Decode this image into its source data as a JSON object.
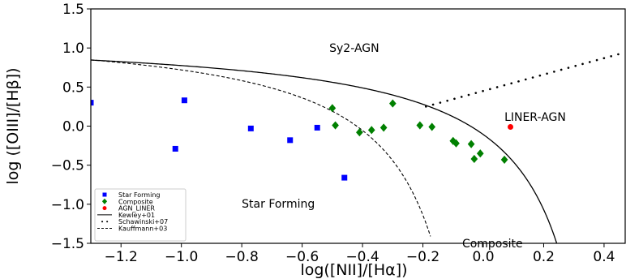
{
  "chart_data": {
    "type": "scatter",
    "xlabel": "log([NII]/[Hα])",
    "ylabel": "log ([OIII]/[Hβ])",
    "xlim": [
      -1.3,
      0.47
    ],
    "ylim": [
      -1.5,
      1.5
    ],
    "xticks": [
      -1.2,
      -1.0,
      -0.8,
      -0.6,
      -0.4,
      -0.2,
      0.0,
      0.2,
      0.4
    ],
    "xtick_labels": [
      "−1.2",
      "−1.0",
      "−0.8",
      "−0.6",
      "−0.4",
      "−0.2",
      "0.0",
      "0.2",
      "0.4"
    ],
    "yticks": [
      -1.5,
      -1.0,
      -0.5,
      0.0,
      0.5,
      1.0,
      1.5
    ],
    "ytick_labels": [
      "−1.5",
      "−1.0",
      "−0.5",
      "0.0",
      "0.5",
      "1.0",
      "1.5"
    ],
    "grid": false,
    "legend_placement": "lower-left",
    "region_labels": [
      {
        "text": "Sy2-AGN",
        "x": -0.51,
        "y": 1.0
      },
      {
        "text": "LINER-AGN",
        "x": 0.07,
        "y": 0.12
      },
      {
        "text": "Star Forming",
        "x": -0.8,
        "y": -0.99
      },
      {
        "text": "Composite",
        "x": -0.07,
        "y": -1.5
      }
    ],
    "series": [
      {
        "name": "Star Forming",
        "marker": "square",
        "color": "#0000ff",
        "points": [
          [
            -1.3,
            0.3
          ],
          [
            -0.99,
            0.33
          ],
          [
            -1.02,
            -0.29
          ],
          [
            -0.77,
            -0.03
          ],
          [
            -0.64,
            -0.18
          ],
          [
            -0.55,
            -0.02
          ],
          [
            -0.46,
            -0.66
          ]
        ]
      },
      {
        "name": "Composite",
        "marker": "diamond",
        "color": "#008000",
        "points": [
          [
            -0.5,
            0.23
          ],
          [
            -0.49,
            0.01
          ],
          [
            -0.41,
            -0.08
          ],
          [
            -0.37,
            -0.05
          ],
          [
            -0.33,
            -0.02
          ],
          [
            -0.3,
            0.29
          ],
          [
            -0.21,
            0.01
          ],
          [
            -0.17,
            -0.01
          ],
          [
            -0.1,
            -0.19
          ],
          [
            -0.09,
            -0.22
          ],
          [
            -0.04,
            -0.23
          ],
          [
            -0.03,
            -0.42
          ],
          [
            -0.01,
            -0.35
          ],
          [
            0.07,
            -0.43
          ]
        ]
      },
      {
        "name": "AGN_LINER",
        "marker": "circle",
        "color": "#ff0000",
        "points": [
          [
            0.09,
            -0.01
          ]
        ]
      }
    ],
    "lines": [
      {
        "name": "Kewley+01",
        "style": "solid",
        "color": "#000000"
      },
      {
        "name": "Schawinski+07",
        "style": "dotted",
        "color": "#000000"
      },
      {
        "name": "Kauffmann+03",
        "style": "dashed",
        "color": "#000000"
      }
    ]
  }
}
